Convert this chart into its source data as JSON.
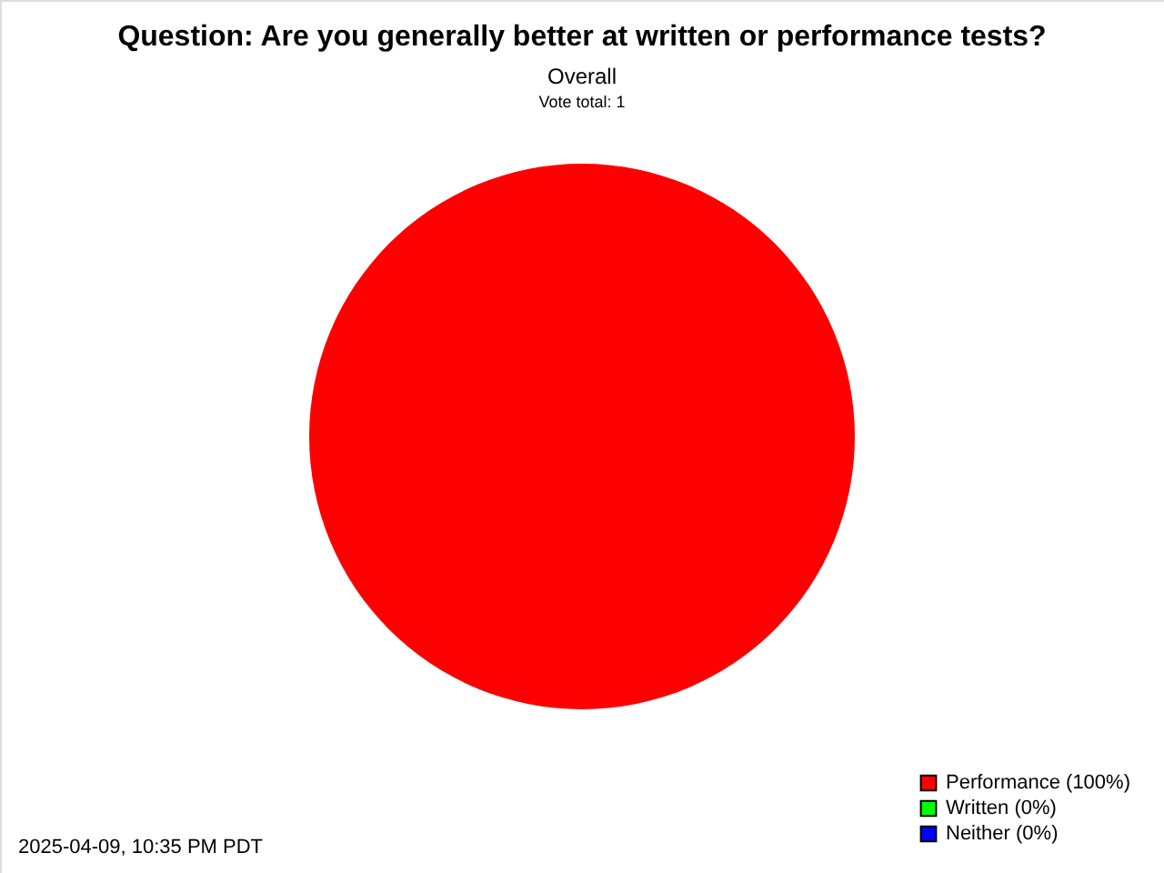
{
  "chart_data": {
    "type": "pie",
    "title": "Question: Are you generally better at written or performance tests?",
    "subtitle": "Overall",
    "categories": [
      "Performance (100%)",
      "Written (0%)",
      "Neither (0%)"
    ],
    "values": [
      100,
      0,
      0
    ],
    "colors": [
      "#ff0000",
      "#00ff00",
      "#0000ff"
    ],
    "legend": "bottom right",
    "annotations": [
      "Vote total: 1",
      "2025-04-09, 10:35 PM PDT"
    ]
  }
}
